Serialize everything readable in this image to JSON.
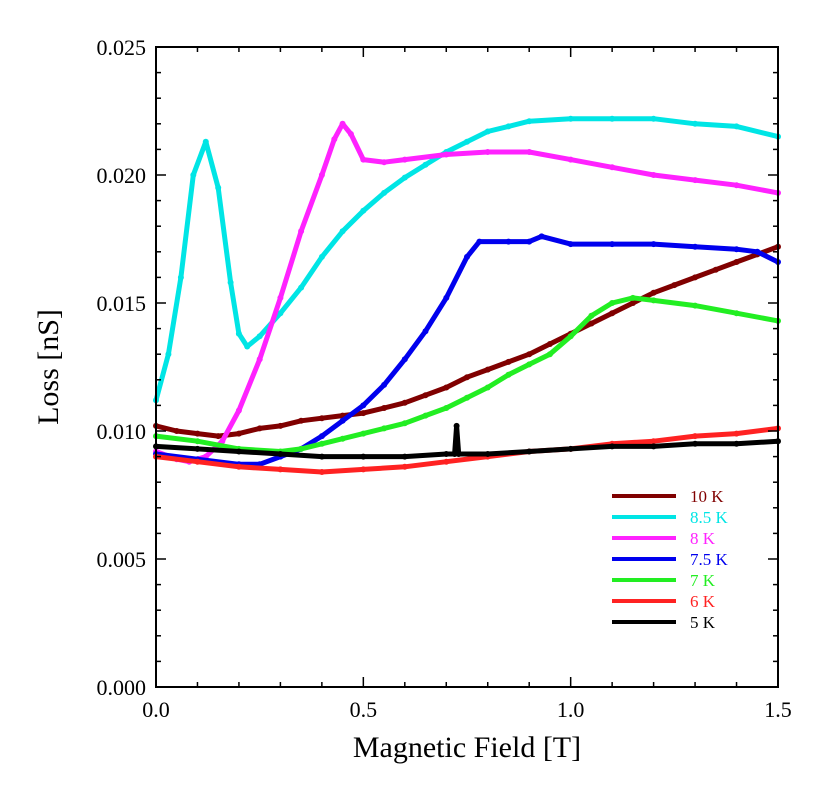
{
  "chart_data": {
    "type": "scatter",
    "title": "",
    "xlabel": "Magnetic Field [T]",
    "ylabel": "Loss [nS]",
    "xlim": [
      0,
      1.5
    ],
    "ylim": [
      0,
      0.025
    ],
    "x_ticks": [
      0,
      0.5,
      1.0,
      1.5
    ],
    "x_tick_labels": [
      "0.0",
      "0.5",
      "1.0",
      "1.5"
    ],
    "y_ticks": [
      0,
      0.005,
      0.01,
      0.015,
      0.02,
      0.025
    ],
    "y_tick_labels": [
      "0.000",
      "0.005",
      "0.010",
      "0.015",
      "0.020",
      "0.025"
    ],
    "grid": false,
    "legend_position": "lower-right",
    "series": [
      {
        "name": "10 K",
        "color": "#800000",
        "points": [
          [
            0,
            0.0102
          ],
          [
            0.05,
            0.01
          ],
          [
            0.1,
            0.0099
          ],
          [
            0.15,
            0.0098
          ],
          [
            0.2,
            0.0099
          ],
          [
            0.25,
            0.0101
          ],
          [
            0.3,
            0.0102
          ],
          [
            0.35,
            0.0104
          ],
          [
            0.4,
            0.0105
          ],
          [
            0.45,
            0.0106
          ],
          [
            0.5,
            0.0107
          ],
          [
            0.55,
            0.0109
          ],
          [
            0.6,
            0.0111
          ],
          [
            0.65,
            0.0114
          ],
          [
            0.7,
            0.0117
          ],
          [
            0.75,
            0.0121
          ],
          [
            0.8,
            0.0124
          ],
          [
            0.85,
            0.0127
          ],
          [
            0.9,
            0.013
          ],
          [
            0.95,
            0.0134
          ],
          [
            1.0,
            0.0138
          ],
          [
            1.05,
            0.0142
          ],
          [
            1.1,
            0.0146
          ],
          [
            1.15,
            0.015
          ],
          [
            1.2,
            0.0154
          ],
          [
            1.25,
            0.0157
          ],
          [
            1.3,
            0.016
          ],
          [
            1.35,
            0.0163
          ],
          [
            1.4,
            0.0166
          ],
          [
            1.45,
            0.0169
          ],
          [
            1.5,
            0.0172
          ]
        ]
      },
      {
        "name": "8.5 K",
        "color": "#00e5e5",
        "points": [
          [
            0,
            0.0112
          ],
          [
            0.03,
            0.013
          ],
          [
            0.06,
            0.016
          ],
          [
            0.09,
            0.02
          ],
          [
            0.12,
            0.0213
          ],
          [
            0.15,
            0.0195
          ],
          [
            0.18,
            0.0158
          ],
          [
            0.2,
            0.0138
          ],
          [
            0.22,
            0.0133
          ],
          [
            0.25,
            0.0137
          ],
          [
            0.3,
            0.0146
          ],
          [
            0.35,
            0.0156
          ],
          [
            0.4,
            0.0168
          ],
          [
            0.45,
            0.0178
          ],
          [
            0.5,
            0.0186
          ],
          [
            0.55,
            0.0193
          ],
          [
            0.6,
            0.0199
          ],
          [
            0.65,
            0.0204
          ],
          [
            0.7,
            0.0209
          ],
          [
            0.75,
            0.0213
          ],
          [
            0.8,
            0.0217
          ],
          [
            0.85,
            0.0219
          ],
          [
            0.9,
            0.0221
          ],
          [
            1.0,
            0.0222
          ],
          [
            1.1,
            0.0222
          ],
          [
            1.2,
            0.0222
          ],
          [
            1.3,
            0.022
          ],
          [
            1.4,
            0.0219
          ],
          [
            1.5,
            0.0215
          ]
        ]
      },
      {
        "name": "8 K",
        "color": "#ff22ff",
        "points": [
          [
            0,
            0.0092
          ],
          [
            0.05,
            0.0089
          ],
          [
            0.08,
            0.0088
          ],
          [
            0.12,
            0.009
          ],
          [
            0.16,
            0.0096
          ],
          [
            0.2,
            0.0108
          ],
          [
            0.25,
            0.0128
          ],
          [
            0.3,
            0.0152
          ],
          [
            0.35,
            0.0178
          ],
          [
            0.4,
            0.02
          ],
          [
            0.43,
            0.0214
          ],
          [
            0.45,
            0.022
          ],
          [
            0.47,
            0.0216
          ],
          [
            0.5,
            0.0206
          ],
          [
            0.55,
            0.0205
          ],
          [
            0.6,
            0.0206
          ],
          [
            0.7,
            0.0208
          ],
          [
            0.8,
            0.0209
          ],
          [
            0.9,
            0.0209
          ],
          [
            1.0,
            0.0206
          ],
          [
            1.1,
            0.0203
          ],
          [
            1.2,
            0.02
          ],
          [
            1.3,
            0.0198
          ],
          [
            1.4,
            0.0196
          ],
          [
            1.5,
            0.0193
          ]
        ]
      },
      {
        "name": "7.5 K",
        "color": "#0000ee",
        "points": [
          [
            0,
            0.0091
          ],
          [
            0.1,
            0.0089
          ],
          [
            0.2,
            0.0087
          ],
          [
            0.25,
            0.0087
          ],
          [
            0.3,
            0.009
          ],
          [
            0.35,
            0.0093
          ],
          [
            0.4,
            0.0098
          ],
          [
            0.45,
            0.0104
          ],
          [
            0.5,
            0.011
          ],
          [
            0.55,
            0.0118
          ],
          [
            0.6,
            0.0128
          ],
          [
            0.65,
            0.0139
          ],
          [
            0.7,
            0.0152
          ],
          [
            0.75,
            0.0168
          ],
          [
            0.78,
            0.0174
          ],
          [
            0.85,
            0.0174
          ],
          [
            0.9,
            0.0174
          ],
          [
            0.93,
            0.0176
          ],
          [
            1.0,
            0.0173
          ],
          [
            1.1,
            0.0173
          ],
          [
            1.2,
            0.0173
          ],
          [
            1.3,
            0.0172
          ],
          [
            1.4,
            0.0171
          ],
          [
            1.45,
            0.017
          ],
          [
            1.5,
            0.0166
          ]
        ]
      },
      {
        "name": "7 K",
        "color": "#22ee22",
        "points": [
          [
            0,
            0.0098
          ],
          [
            0.1,
            0.0096
          ],
          [
            0.2,
            0.0093
          ],
          [
            0.3,
            0.0092
          ],
          [
            0.35,
            0.0093
          ],
          [
            0.4,
            0.0095
          ],
          [
            0.45,
            0.0097
          ],
          [
            0.5,
            0.0099
          ],
          [
            0.55,
            0.0101
          ],
          [
            0.6,
            0.0103
          ],
          [
            0.65,
            0.0106
          ],
          [
            0.7,
            0.0109
          ],
          [
            0.75,
            0.0113
          ],
          [
            0.8,
            0.0117
          ],
          [
            0.85,
            0.0122
          ],
          [
            0.9,
            0.0126
          ],
          [
            0.95,
            0.013
          ],
          [
            1.0,
            0.0137
          ],
          [
            1.05,
            0.0145
          ],
          [
            1.1,
            0.015
          ],
          [
            1.15,
            0.0152
          ],
          [
            1.2,
            0.0151
          ],
          [
            1.3,
            0.0149
          ],
          [
            1.4,
            0.0146
          ],
          [
            1.5,
            0.0143
          ]
        ]
      },
      {
        "name": "6 K",
        "color": "#ff2222",
        "points": [
          [
            0,
            0.009
          ],
          [
            0.1,
            0.0088
          ],
          [
            0.2,
            0.0086
          ],
          [
            0.3,
            0.0085
          ],
          [
            0.4,
            0.0084
          ],
          [
            0.5,
            0.0085
          ],
          [
            0.6,
            0.0086
          ],
          [
            0.7,
            0.0088
          ],
          [
            0.8,
            0.009
          ],
          [
            0.9,
            0.0092
          ],
          [
            1.0,
            0.0093
          ],
          [
            1.1,
            0.0095
          ],
          [
            1.2,
            0.0096
          ],
          [
            1.3,
            0.0098
          ],
          [
            1.4,
            0.0099
          ],
          [
            1.5,
            0.0101
          ]
        ]
      },
      {
        "name": "5 K",
        "color": "#000000",
        "points": [
          [
            0,
            0.0094
          ],
          [
            0.1,
            0.0093
          ],
          [
            0.2,
            0.0092
          ],
          [
            0.3,
            0.0091
          ],
          [
            0.4,
            0.009
          ],
          [
            0.5,
            0.009
          ],
          [
            0.6,
            0.009
          ],
          [
            0.7,
            0.0091
          ],
          [
            0.72,
            0.0091
          ],
          [
            0.725,
            0.0102
          ],
          [
            0.73,
            0.0091
          ],
          [
            0.8,
            0.0091
          ],
          [
            0.9,
            0.0092
          ],
          [
            1.0,
            0.0093
          ],
          [
            1.1,
            0.0094
          ],
          [
            1.2,
            0.0094
          ],
          [
            1.3,
            0.0095
          ],
          [
            1.4,
            0.0095
          ],
          [
            1.5,
            0.0096
          ]
        ]
      }
    ]
  }
}
